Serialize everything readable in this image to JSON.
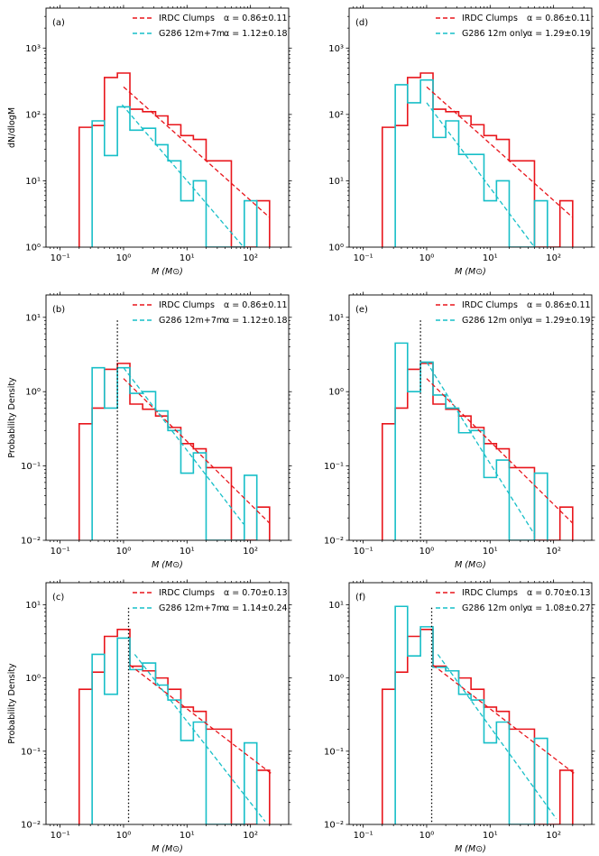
{
  "colors": {
    "irdc": "#e8151b",
    "g286": "#17bfc8",
    "axis": "#000000"
  },
  "chart_data": [
    {
      "type": "histogram",
      "panel_label": "(a)",
      "ylabel": "dN/dlogM",
      "xlabel": "M (M⊙)",
      "xscale": "log",
      "yscale": "log",
      "xlim": [
        0.06,
        400
      ],
      "ylim": [
        1,
        4000
      ],
      "xticks": [
        {
          "v": 0.1,
          "label": "10⁻¹"
        },
        {
          "v": 1,
          "label": "10⁰"
        },
        {
          "v": 10,
          "label": "10¹"
        },
        {
          "v": 100,
          "label": "10²"
        }
      ],
      "yticks": [
        {
          "v": 1,
          "label": "10⁰"
        },
        {
          "v": 10,
          "label": "10¹"
        },
        {
          "v": 100,
          "label": "10²"
        },
        {
          "v": 1000,
          "label": "10³"
        }
      ],
      "cutoff": null,
      "series": [
        {
          "name": "IRDC Clumps",
          "color": "#e8151b",
          "alpha_text": "α = 0.86±0.11",
          "bin_edges": [
            0.2,
            0.32,
            0.5,
            0.8,
            1.26,
            2,
            3.2,
            5,
            8,
            12.6,
            20,
            32,
            50,
            80,
            126,
            200
          ],
          "values": [
            64,
            68,
            360,
            420,
            120,
            110,
            95,
            70,
            48,
            42,
            20,
            20,
            1,
            1,
            5
          ],
          "fit": {
            "x": [
              1.0,
              200
            ],
            "y": [
              260,
              2.8
            ]
          }
        },
        {
          "name": "G286 12m+7m",
          "color": "#17bfc8",
          "alpha_text": "α = 1.12±0.18",
          "bin_edges": [
            0.32,
            0.5,
            0.8,
            1.26,
            2,
            3.2,
            5,
            8,
            12.6,
            20,
            32,
            50,
            80,
            126
          ],
          "values": [
            80,
            24,
            130,
            58,
            62,
            35,
            20,
            5,
            10,
            1,
            1,
            1,
            5
          ],
          "fit": {
            "x": [
              0.95,
              78
            ],
            "y": [
              140,
              1
            ]
          }
        }
      ]
    },
    {
      "type": "histogram",
      "panel_label": "(d)",
      "ylabel": "",
      "xlabel": "M (M⊙)",
      "xscale": "log",
      "yscale": "log",
      "xlim": [
        0.06,
        400
      ],
      "ylim": [
        1,
        4000
      ],
      "xticks": [
        {
          "v": 0.1,
          "label": "10⁻¹"
        },
        {
          "v": 1,
          "label": "10⁰"
        },
        {
          "v": 10,
          "label": "10¹"
        },
        {
          "v": 100,
          "label": "10²"
        }
      ],
      "yticks": [
        {
          "v": 1,
          "label": "10⁰"
        },
        {
          "v": 10,
          "label": "10¹"
        },
        {
          "v": 100,
          "label": "10²"
        },
        {
          "v": 1000,
          "label": "10³"
        }
      ],
      "cutoff": null,
      "series": [
        {
          "name": "IRDC Clumps",
          "color": "#e8151b",
          "alpha_text": "α = 0.86±0.11",
          "bin_edges": [
            0.2,
            0.32,
            0.5,
            0.8,
            1.26,
            2,
            3.2,
            5,
            8,
            12.6,
            20,
            32,
            50,
            80,
            126,
            200
          ],
          "values": [
            64,
            68,
            360,
            420,
            120,
            110,
            95,
            70,
            48,
            42,
            20,
            20,
            1,
            1,
            5
          ],
          "fit": {
            "x": [
              1.0,
              200
            ],
            "y": [
              260,
              2.8
            ]
          }
        },
        {
          "name": "G286 12m only",
          "color": "#17bfc8",
          "alpha_text": "α = 1.29±0.19",
          "bin_edges": [
            0.32,
            0.5,
            0.8,
            1.26,
            2,
            3.2,
            5,
            8,
            12.6,
            20,
            32,
            50,
            80
          ],
          "values": [
            280,
            150,
            330,
            45,
            80,
            25,
            25,
            5,
            10,
            1,
            1,
            5
          ],
          "fit": {
            "x": [
              1.0,
              50
            ],
            "y": [
              150,
              1
            ]
          }
        }
      ]
    },
    {
      "type": "histogram",
      "panel_label": "(b)",
      "ylabel": "Probability Density",
      "xlabel": "M (M⊙)",
      "xscale": "log",
      "yscale": "log",
      "xlim": [
        0.06,
        400
      ],
      "ylim": [
        0.01,
        20
      ],
      "xticks": [
        {
          "v": 0.1,
          "label": "10⁻¹"
        },
        {
          "v": 1,
          "label": "10⁰"
        },
        {
          "v": 10,
          "label": "10¹"
        },
        {
          "v": 100,
          "label": "10²"
        }
      ],
      "yticks": [
        {
          "v": 0.01,
          "label": "10⁻²"
        },
        {
          "v": 0.1,
          "label": "10⁻¹"
        },
        {
          "v": 1,
          "label": "10⁰"
        },
        {
          "v": 10,
          "label": "10¹"
        }
      ],
      "cutoff": 0.8,
      "series": [
        {
          "name": "IRDC Clumps",
          "color": "#e8151b",
          "alpha_text": "α = 0.86±0.11",
          "bin_edges": [
            0.2,
            0.32,
            0.5,
            0.8,
            1.26,
            2,
            3.2,
            5,
            8,
            12.6,
            20,
            32,
            50,
            80,
            126,
            200
          ],
          "values": [
            0.37,
            0.6,
            2.0,
            2.4,
            0.68,
            0.58,
            0.47,
            0.33,
            0.2,
            0.17,
            0.095,
            0.095,
            0.01,
            0.01,
            0.028
          ],
          "fit": {
            "x": [
              1.0,
              200
            ],
            "y": [
              1.5,
              0.017
            ]
          }
        },
        {
          "name": "G286 12m+7m",
          "color": "#17bfc8",
          "alpha_text": "α = 1.12±0.18",
          "bin_edges": [
            0.32,
            0.5,
            0.8,
            1.26,
            2,
            3.2,
            5,
            8,
            12.6,
            20,
            32,
            50,
            80,
            126
          ],
          "values": [
            2.1,
            0.6,
            2.1,
            0.95,
            1.0,
            0.55,
            0.3,
            0.08,
            0.15,
            0.01,
            0.01,
            0.01,
            0.075
          ],
          "fit": {
            "x": [
              1.0,
              78
            ],
            "y": [
              2.1,
              0.0165
            ]
          }
        }
      ]
    },
    {
      "type": "histogram",
      "panel_label": "(e)",
      "ylabel": "",
      "xlabel": "M (M⊙)",
      "xscale": "log",
      "yscale": "log",
      "xlim": [
        0.06,
        400
      ],
      "ylim": [
        0.01,
        20
      ],
      "xticks": [
        {
          "v": 0.1,
          "label": "10⁻¹"
        },
        {
          "v": 1,
          "label": "10⁰"
        },
        {
          "v": 10,
          "label": "10¹"
        },
        {
          "v": 100,
          "label": "10²"
        }
      ],
      "yticks": [
        {
          "v": 0.01,
          "label": "10⁻²"
        },
        {
          "v": 0.1,
          "label": "10⁻¹"
        },
        {
          "v": 1,
          "label": "10⁰"
        },
        {
          "v": 10,
          "label": "10¹"
        }
      ],
      "cutoff": 0.8,
      "series": [
        {
          "name": "IRDC Clumps",
          "color": "#e8151b",
          "alpha_text": "α = 0.86±0.11",
          "bin_edges": [
            0.2,
            0.32,
            0.5,
            0.8,
            1.26,
            2,
            3.2,
            5,
            8,
            12.6,
            20,
            32,
            50,
            80,
            126,
            200
          ],
          "values": [
            0.37,
            0.6,
            2.0,
            2.4,
            0.68,
            0.58,
            0.47,
            0.33,
            0.2,
            0.17,
            0.095,
            0.095,
            0.01,
            0.01,
            0.028
          ],
          "fit": {
            "x": [
              1.0,
              200
            ],
            "y": [
              1.5,
              0.017
            ]
          }
        },
        {
          "name": "G286 12m only",
          "color": "#17bfc8",
          "alpha_text": "α = 1.29±0.19",
          "bin_edges": [
            0.32,
            0.5,
            0.8,
            1.26,
            2,
            3.2,
            5,
            8,
            12.6,
            20,
            32,
            50,
            80
          ],
          "values": [
            4.5,
            1.0,
            2.5,
            0.9,
            0.6,
            0.28,
            0.3,
            0.07,
            0.12,
            0.01,
            0.01,
            0.08
          ],
          "fit": {
            "x": [
              1.0,
              50
            ],
            "y": [
              2.5,
              0.012
            ]
          }
        }
      ]
    },
    {
      "type": "histogram",
      "panel_label": "(c)",
      "ylabel": "Probability Density",
      "xlabel": "M (M⊙)",
      "xscale": "log",
      "yscale": "log",
      "xlim": [
        0.06,
        400
      ],
      "ylim": [
        0.01,
        20
      ],
      "xticks": [
        {
          "v": 0.1,
          "label": "10⁻¹"
        },
        {
          "v": 1,
          "label": "10⁰"
        },
        {
          "v": 10,
          "label": "10¹"
        },
        {
          "v": 100,
          "label": "10²"
        }
      ],
      "yticks": [
        {
          "v": 0.01,
          "label": "10⁻²"
        },
        {
          "v": 0.1,
          "label": "10⁻¹"
        },
        {
          "v": 1,
          "label": "10⁰"
        },
        {
          "v": 10,
          "label": "10¹"
        }
      ],
      "cutoff": 1.2,
      "series": [
        {
          "name": "IRDC Clumps",
          "color": "#e8151b",
          "alpha_text": "α = 0.70±0.13",
          "bin_edges": [
            0.2,
            0.32,
            0.5,
            0.8,
            1.26,
            2,
            3.2,
            5,
            8,
            12.6,
            20,
            32,
            50,
            80,
            126,
            200
          ],
          "values": [
            0.7,
            1.2,
            3.7,
            4.6,
            1.45,
            1.25,
            1.0,
            0.7,
            0.4,
            0.35,
            0.2,
            0.2,
            0.01,
            0.01,
            0.055
          ],
          "fit": {
            "x": [
              1.26,
              210
            ],
            "y": [
              1.5,
              0.05
            ]
          }
        },
        {
          "name": "G286 12m+7m",
          "color": "#17bfc8",
          "alpha_text": "α = 1.14±0.24",
          "bin_edges": [
            0.32,
            0.5,
            0.8,
            1.26,
            2,
            3.2,
            5,
            8,
            12.6,
            20,
            32,
            50,
            80,
            126
          ],
          "values": [
            2.1,
            0.6,
            3.5,
            1.3,
            1.6,
            0.8,
            0.5,
            0.14,
            0.25,
            0.01,
            0.01,
            0.01,
            0.13
          ],
          "fit": {
            "x": [
              1.5,
              170
            ],
            "y": [
              2.1,
              0.011
            ]
          }
        }
      ]
    },
    {
      "type": "histogram",
      "panel_label": "(f)",
      "ylabel": "",
      "xlabel": "M (M⊙)",
      "xscale": "log",
      "yscale": "log",
      "xlim": [
        0.06,
        400
      ],
      "ylim": [
        0.01,
        20
      ],
      "xticks": [
        {
          "v": 0.1,
          "label": "10⁻¹"
        },
        {
          "v": 1,
          "label": "10⁰"
        },
        {
          "v": 10,
          "label": "10¹"
        },
        {
          "v": 100,
          "label": "10²"
        }
      ],
      "yticks": [
        {
          "v": 0.01,
          "label": "10⁻²"
        },
        {
          "v": 0.1,
          "label": "10⁻¹"
        },
        {
          "v": 1,
          "label": "10⁰"
        },
        {
          "v": 10,
          "label": "10¹"
        }
      ],
      "cutoff": 1.2,
      "series": [
        {
          "name": "IRDC Clumps",
          "color": "#e8151b",
          "alpha_text": "α = 0.70±0.13",
          "bin_edges": [
            0.2,
            0.32,
            0.5,
            0.8,
            1.26,
            2,
            3.2,
            5,
            8,
            12.6,
            20,
            32,
            50,
            80,
            126,
            200
          ],
          "values": [
            0.7,
            1.2,
            3.7,
            4.6,
            1.45,
            1.25,
            1.0,
            0.7,
            0.4,
            0.35,
            0.2,
            0.2,
            0.01,
            0.01,
            0.055
          ],
          "fit": {
            "x": [
              1.26,
              210
            ],
            "y": [
              1.5,
              0.05
            ]
          }
        },
        {
          "name": "G286 12m only",
          "color": "#17bfc8",
          "alpha_text": "α = 1.08±0.27",
          "bin_edges": [
            0.32,
            0.5,
            0.8,
            1.26,
            2,
            3.2,
            5,
            8,
            12.6,
            20,
            32,
            50,
            80
          ],
          "values": [
            9.5,
            2.0,
            5.0,
            1.4,
            1.25,
            0.6,
            0.5,
            0.13,
            0.25,
            0.01,
            0.01,
            0.15
          ],
          "fit": {
            "x": [
              1.5,
              110
            ],
            "y": [
              2.1,
              0.012
            ]
          }
        }
      ]
    }
  ]
}
